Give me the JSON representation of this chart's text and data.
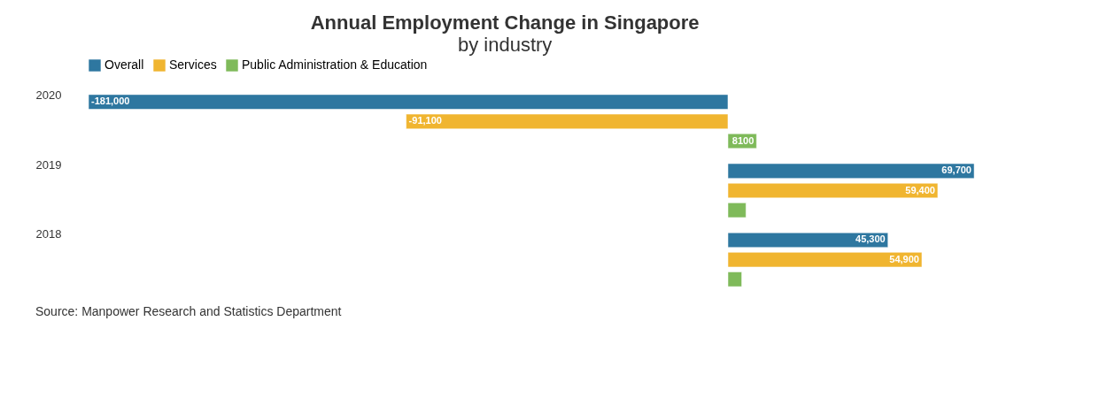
{
  "chart_data": {
    "type": "bar",
    "orientation": "horizontal",
    "title": "Annual Employment Change in Singapore",
    "subtitle": "by industry",
    "categories": [
      "2020",
      "2019",
      "2018"
    ],
    "series": [
      {
        "name": "Overall",
        "color": "#2e77a0",
        "values": [
          -181000,
          69700,
          45300
        ],
        "value_labels": [
          "-181,000",
          "69,700",
          "45,300"
        ]
      },
      {
        "name": "Services",
        "color": "#f0b530",
        "values": [
          -91100,
          59400,
          54900
        ],
        "value_labels": [
          "-91,100",
          "59,400",
          "54,900"
        ]
      },
      {
        "name": "Public Administration & Education",
        "color": "#7fba5a",
        "values": [
          8100,
          5100,
          3900
        ],
        "value_labels": [
          "8100",
          null,
          null
        ]
      }
    ],
    "legend": "top",
    "tick_labels": "y",
    "annotations": [
      "Source: Manpower Research and Statistics Department"
    ]
  }
}
